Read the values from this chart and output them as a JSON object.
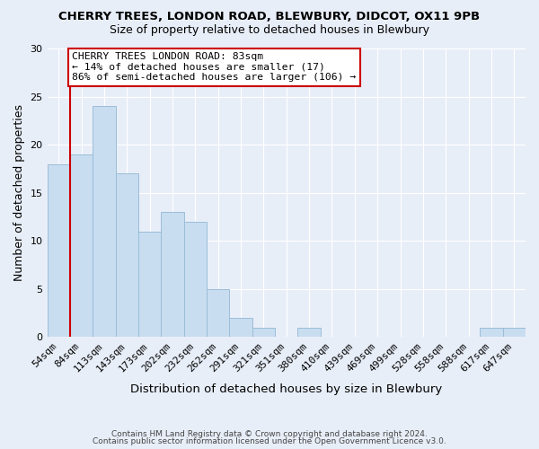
{
  "title": "CHERRY TREES, LONDON ROAD, BLEWBURY, DIDCOT, OX11 9PB",
  "subtitle": "Size of property relative to detached houses in Blewbury",
  "xlabel": "Distribution of detached houses by size in Blewbury",
  "ylabel": "Number of detached properties",
  "bar_color": "#c8ddf0",
  "bar_edge_color": "#9bbdd8",
  "background_color": "#e8eef8",
  "grid_color": "#ffffff",
  "categories": [
    "54sqm",
    "84sqm",
    "113sqm",
    "143sqm",
    "173sqm",
    "202sqm",
    "232sqm",
    "262sqm",
    "291sqm",
    "321sqm",
    "351sqm",
    "380sqm",
    "410sqm",
    "439sqm",
    "469sqm",
    "499sqm",
    "528sqm",
    "558sqm",
    "588sqm",
    "617sqm",
    "647sqm"
  ],
  "values": [
    18,
    19,
    24,
    17,
    11,
    13,
    12,
    5,
    2,
    1,
    0,
    1,
    0,
    0,
    0,
    0,
    0,
    0,
    0,
    1,
    1
  ],
  "ylim": [
    0,
    30
  ],
  "yticks": [
    0,
    5,
    10,
    15,
    20,
    25,
    30
  ],
  "vline_color": "#cc0000",
  "annotation_text": "CHERRY TREES LONDON ROAD: 83sqm\n← 14% of detached houses are smaller (17)\n86% of semi-detached houses are larger (106) →",
  "annotation_box_edge": "#cc0000",
  "footer_line1": "Contains HM Land Registry data © Crown copyright and database right 2024.",
  "footer_line2": "Contains public sector information licensed under the Open Government Licence v3.0."
}
